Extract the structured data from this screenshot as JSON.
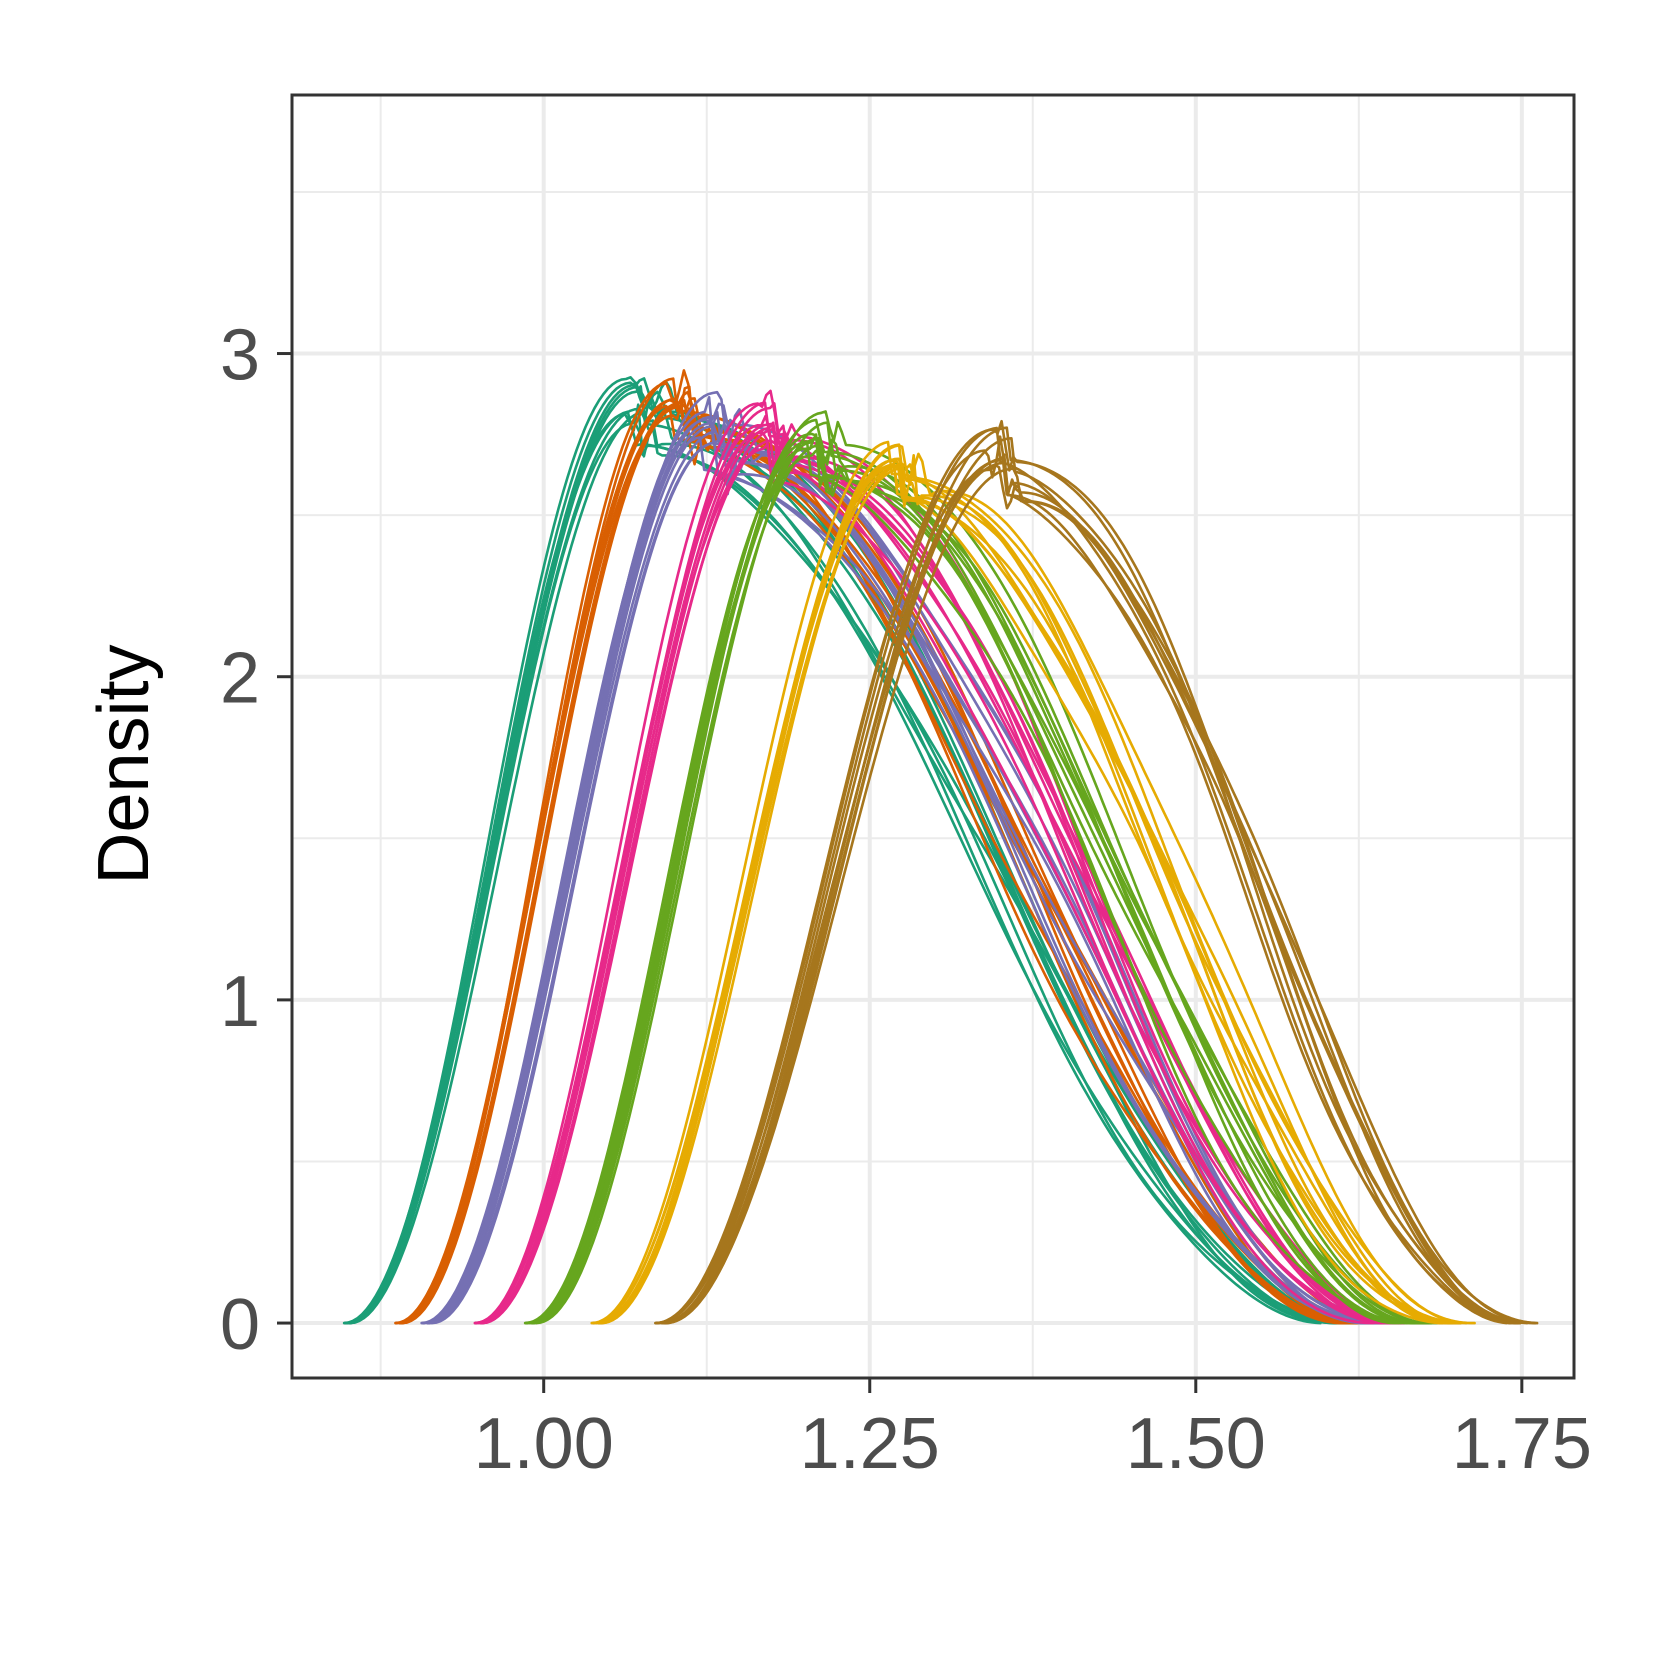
{
  "chart_data": {
    "type": "line",
    "title": "",
    "xlabel": "",
    "ylabel": "Density",
    "xlim": [
      0.807,
      1.79
    ],
    "ylim": [
      -0.17,
      3.8
    ],
    "x_ticks": [
      1.0,
      1.25,
      1.5,
      1.75
    ],
    "x_tick_labels": [
      "1.00",
      "1.25",
      "1.50",
      "1.75"
    ],
    "y_ticks": [
      0,
      1,
      2,
      3
    ],
    "y_tick_labels": [
      "0",
      "1",
      "2",
      "3"
    ],
    "grid": true,
    "legend": "none",
    "curves_per_group": 10,
    "groups": [
      {
        "color": "#1b9e77",
        "start": 0.85,
        "end": 1.61,
        "left_width": 0.22,
        "right_width": 0.52,
        "peak": 2.85
      },
      {
        "color": "#d95f02",
        "start": 0.89,
        "end": 1.63,
        "left_width": 0.21,
        "right_width": 0.51,
        "peak": 2.85
      },
      {
        "color": "#7570b3",
        "start": 0.91,
        "end": 1.64,
        "left_width": 0.22,
        "right_width": 0.5,
        "peak": 2.8
      },
      {
        "color": "#e7298a",
        "start": 0.95,
        "end": 1.65,
        "left_width": 0.22,
        "right_width": 0.47,
        "peak": 2.78
      },
      {
        "color": "#66a61e",
        "start": 0.99,
        "end": 1.67,
        "left_width": 0.22,
        "right_width": 0.45,
        "peak": 2.74
      },
      {
        "color": "#e6ab02",
        "start": 1.04,
        "end": 1.7,
        "left_width": 0.23,
        "right_width": 0.42,
        "peak": 2.72
      },
      {
        "color": "#a6761d",
        "start": 1.09,
        "end": 1.75,
        "left_width": 0.26,
        "right_width": 0.39,
        "peak": 2.72
      }
    ]
  }
}
